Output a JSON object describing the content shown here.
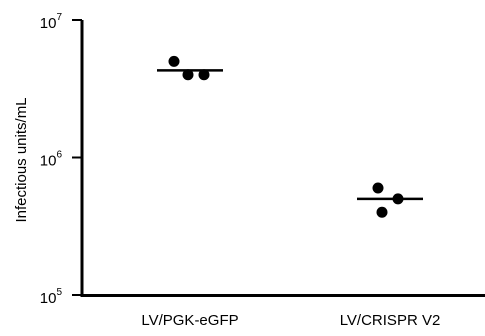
{
  "chart_data": {
    "type": "scatter",
    "title": "",
    "xlabel": "",
    "ylabel": "Infectious units/mL",
    "yscale": "log",
    "ylim": [
      100000,
      10000000
    ],
    "yticks": [
      {
        "base": "10",
        "exp": "5",
        "value": 100000
      },
      {
        "base": "10",
        "exp": "6",
        "value": 1000000
      },
      {
        "base": "10",
        "exp": "7",
        "value": 10000000
      }
    ],
    "categories": [
      "LV/PGK-eGFP",
      "LV/CRISPR V2"
    ],
    "groups": [
      {
        "category": "LV/PGK-eGFP",
        "points": [
          5000000,
          4000000,
          4000000
        ],
        "mean": 4300000
      },
      {
        "category": "LV/CRISPR V2",
        "points": [
          600000,
          500000,
          400000
        ],
        "mean": 500000
      }
    ],
    "grid": false,
    "legend": "none"
  }
}
